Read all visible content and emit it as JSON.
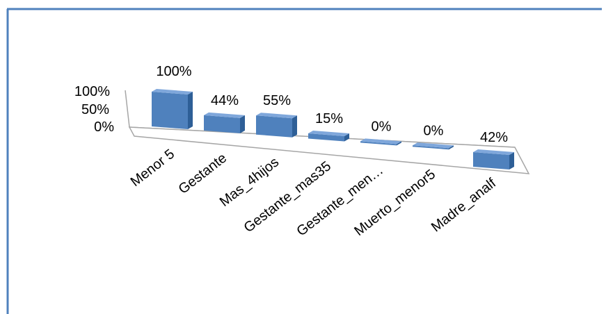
{
  "chart_data": {
    "type": "bar",
    "style": "3d-perspective",
    "categories": [
      "Menor 5",
      "Gestante",
      "Mas_4hijos",
      "Gestante_mas35",
      "Gestante_men…",
      "Muerto_menor5",
      "Madre_analf"
    ],
    "values": [
      100,
      44,
      55,
      15,
      0,
      0,
      42
    ],
    "data_labels": [
      "100%",
      "44%",
      "55%",
      "15%",
      "0%",
      "0%",
      "42%"
    ],
    "y_ticks": [
      "100%",
      "50%",
      "0%"
    ],
    "ylim": [
      0,
      100
    ],
    "grid": false,
    "legend": "none",
    "colors": {
      "bar_front": "#4F81BD",
      "bar_top": "#7FA7DB",
      "bar_side": "#2E5F97",
      "frame": "#4F81BD",
      "axis": "#A6A6A6"
    }
  }
}
